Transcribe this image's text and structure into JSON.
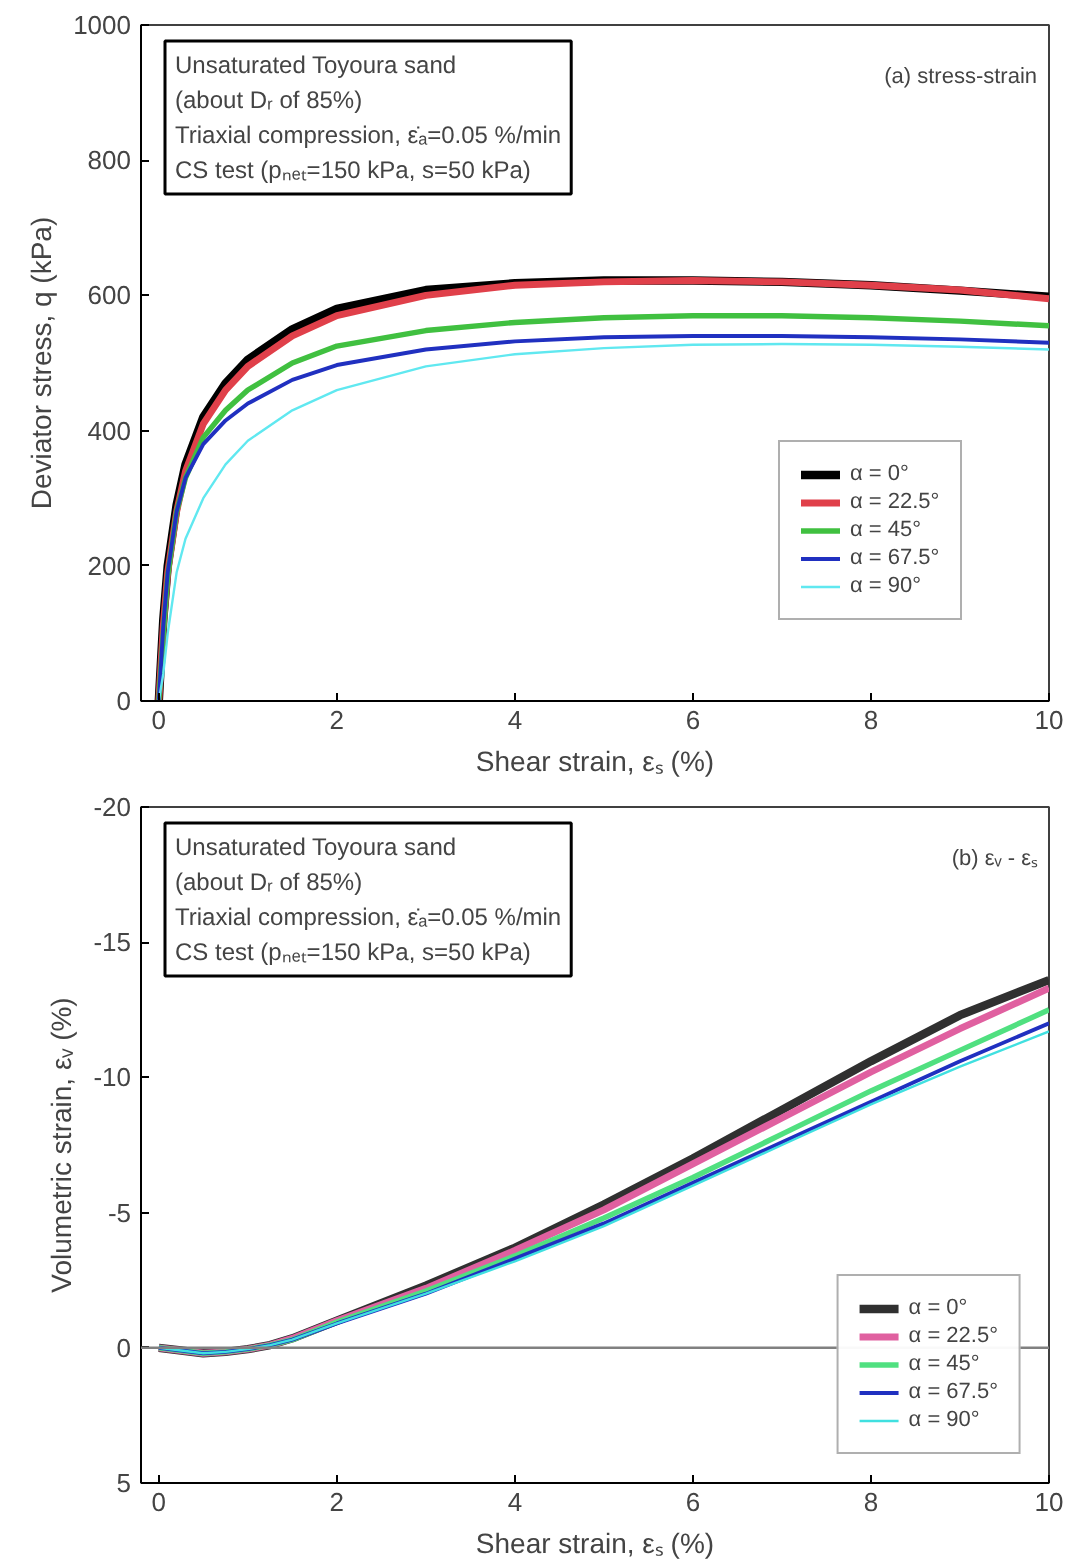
{
  "chart_data": [
    {
      "type": "line",
      "xlabel": "Shear strain, εₛ (%)",
      "ylabel": "Deviator stress, q (kPa)",
      "annotations": [
        "Unsaturated Toyoura sand",
        "(about Dᵣ of 85%)",
        "Triaxial compression, ε̇ₐ=0.05 %/min",
        "CS test (pₙₑₜ=150 kPa, s=50 kPa)",
        "(a) stress-strain"
      ],
      "x": [
        0,
        0.05,
        0.1,
        0.2,
        0.3,
        0.5,
        0.75,
        1,
        1.5,
        2,
        3,
        4,
        5,
        6,
        7,
        8,
        9,
        10
      ],
      "series": [
        {
          "name": "α = 0°",
          "color": "#000000",
          "values": [
            0,
            120,
            200,
            290,
            350,
            420,
            470,
            505,
            550,
            580,
            608,
            618,
            622,
            622,
            620,
            615,
            607,
            598
          ]
        },
        {
          "name": "α = 22.5°",
          "color": "#e0404a",
          "values": [
            0,
            110,
            190,
            280,
            340,
            410,
            460,
            495,
            540,
            570,
            600,
            615,
            620,
            622,
            620,
            615,
            608,
            595
          ]
        },
        {
          "name": "α = 45°",
          "color": "#40c040",
          "values": [
            0,
            100,
            185,
            280,
            330,
            390,
            430,
            460,
            500,
            525,
            548,
            560,
            567,
            570,
            570,
            567,
            562,
            555
          ]
        },
        {
          "name": "α = 67.5°",
          "color": "#2030c0",
          "values": [
            0,
            110,
            190,
            280,
            330,
            380,
            415,
            440,
            475,
            497,
            520,
            532,
            538,
            540,
            540,
            538,
            535,
            530
          ]
        },
        {
          "name": "α = 90°",
          "color": "#60e8f0",
          "values": [
            0,
            40,
            100,
            190,
            240,
            300,
            350,
            385,
            430,
            460,
            495,
            513,
            522,
            527,
            528,
            527,
            524,
            520
          ]
        }
      ],
      "xlim": [
        -0.2,
        10
      ],
      "xticks": [
        0,
        2,
        4,
        6,
        8,
        10
      ],
      "ylim": [
        0,
        1000
      ],
      "yticks": [
        0,
        200,
        400,
        600,
        800,
        1000
      ],
      "grid": false,
      "legend": "right",
      "line_style": "solid"
    },
    {
      "type": "line",
      "xlabel": "Shear strain, εₛ (%)",
      "ylabel": "Volumetric strain, εᵥ (%)",
      "annotations": [
        "Unsaturated Toyoura sand",
        "(about Dᵣ of 85%)",
        "Triaxial compression, ε̇ₐ=0.05 %/min",
        "CS test (pₙₑₜ=150 kPa, s=50 kPa)",
        "(b) εᵥ - εₛ"
      ],
      "x": [
        0,
        0.25,
        0.5,
        0.75,
        1,
        1.25,
        1.5,
        2,
        3,
        4,
        5,
        6,
        7,
        8,
        9,
        10
      ],
      "series": [
        {
          "name": "α = 0°",
          "color": "#303030",
          "values": [
            0,
            0.1,
            0.2,
            0.15,
            0.05,
            -0.1,
            -0.35,
            -1,
            -2.3,
            -3.7,
            -5.3,
            -7,
            -8.8,
            -10.6,
            -12.3,
            -13.6
          ]
        },
        {
          "name": "α = 22.5°",
          "color": "#e060a0",
          "values": [
            0,
            0.1,
            0.2,
            0.15,
            0.05,
            -0.1,
            -0.35,
            -1,
            -2.2,
            -3.6,
            -5.1,
            -6.8,
            -8.5,
            -10.2,
            -11.8,
            -13.3
          ]
        },
        {
          "name": "α = 45°",
          "color": "#50e080",
          "values": [
            0,
            0.1,
            0.2,
            0.15,
            0.05,
            -0.1,
            -0.3,
            -0.95,
            -2.1,
            -3.4,
            -4.8,
            -6.3,
            -7.9,
            -9.5,
            -11,
            -12.5
          ]
        },
        {
          "name": "α = 67.5°",
          "color": "#2030c0",
          "values": [
            0,
            0.1,
            0.2,
            0.15,
            0.05,
            -0.1,
            -0.3,
            -0.9,
            -2,
            -3.3,
            -4.6,
            -6.1,
            -7.6,
            -9.1,
            -10.6,
            -12
          ]
        },
        {
          "name": "α = 90°",
          "color": "#40e0e0",
          "values": [
            0,
            0.1,
            0.2,
            0.15,
            0.05,
            -0.1,
            -0.3,
            -0.9,
            -2,
            -3.2,
            -4.5,
            -6,
            -7.5,
            -9,
            -10.4,
            -11.7
          ]
        }
      ],
      "ref_lines": [
        {
          "axis": "y",
          "value": 0,
          "color": "#808080"
        }
      ],
      "xlim": [
        -0.2,
        10
      ],
      "xticks": [
        0,
        2,
        4,
        6,
        8,
        10
      ],
      "ylim": [
        5,
        -20
      ],
      "yticks": [
        5,
        0,
        -5,
        -10,
        -15,
        -20
      ],
      "grid": false,
      "legend": "bottom right",
      "line_style": "solid"
    }
  ]
}
